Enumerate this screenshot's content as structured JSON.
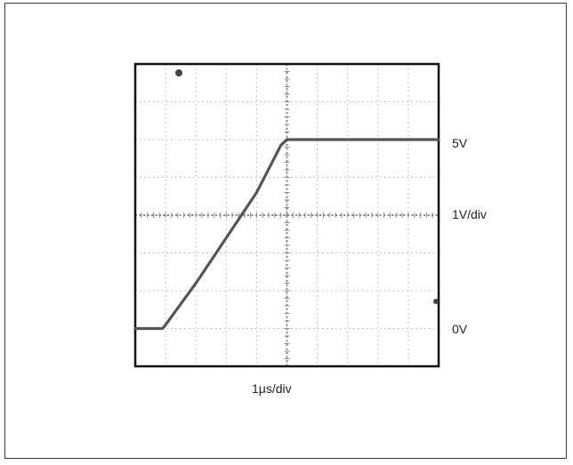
{
  "chart_data": {
    "type": "line",
    "title": "",
    "xlabel": "1μs/div",
    "ylabel": "1V/div",
    "level_labels": {
      "top": "5V",
      "bottom": "0V"
    },
    "x_divisions": 10,
    "y_divisions": 8,
    "xlim": [
      0,
      10
    ],
    "ylim": [
      -1,
      7
    ],
    "grid": true,
    "colors": {
      "trace": "#555555",
      "grid": "#b0b0b0",
      "border": "#111111"
    },
    "series": [
      {
        "x": [
          0.0,
          0.9,
          1.0,
          2.0,
          3.0,
          4.0,
          4.8,
          5.0,
          6.0,
          7.0,
          8.0,
          9.0,
          10.0
        ],
        "y": [
          0.0,
          0.0,
          0.1,
          1.2,
          2.4,
          3.6,
          4.85,
          5.0,
          5.0,
          5.0,
          5.0,
          5.0,
          5.0
        ]
      }
    ]
  }
}
